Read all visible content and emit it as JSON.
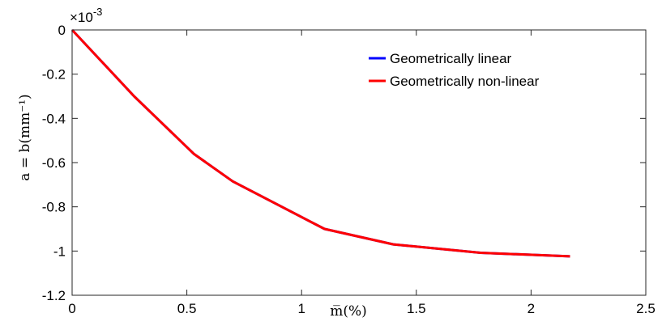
{
  "chart_data": {
    "type": "line",
    "xlabel": "m̅(%)",
    "ylabel": "a = b(mm⁻¹)",
    "y_multiplier_label": "×10",
    "y_multiplier_exponent": "-3",
    "xlim": [
      0,
      2.5
    ],
    "ylim": [
      -1.2,
      0
    ],
    "x_ticks": [
      "0",
      "0.5",
      "1",
      "1.5",
      "2",
      "2.5"
    ],
    "x_tick_values": [
      0,
      0.5,
      1,
      1.5,
      2,
      2.5
    ],
    "y_ticks": [
      "0",
      "-0.2",
      "-0.4",
      "-0.6",
      "-0.8",
      "-1",
      "-1.2"
    ],
    "y_tick_values": [
      0,
      -0.2,
      -0.4,
      -0.6,
      -0.8,
      -1,
      -1.2
    ],
    "grid": false,
    "legend_position": "top-right",
    "series": [
      {
        "name": "Geometrically linear",
        "color": "#0000ff",
        "x": [
          0,
          0.27,
          0.53,
          0.7,
          1.1,
          1.4,
          1.78,
          2.17
        ],
        "y": [
          0,
          -0.3,
          -0.56,
          -0.685,
          -0.9,
          -0.97,
          -1.008,
          -1.024
        ]
      },
      {
        "name": "Geometrically non-linear",
        "color": "#ff0000",
        "x": [
          0,
          0.27,
          0.53,
          0.7,
          1.1,
          1.4,
          1.78,
          2.17
        ],
        "y": [
          0,
          -0.3,
          -0.56,
          -0.685,
          -0.9,
          -0.97,
          -1.008,
          -1.024
        ]
      }
    ]
  }
}
